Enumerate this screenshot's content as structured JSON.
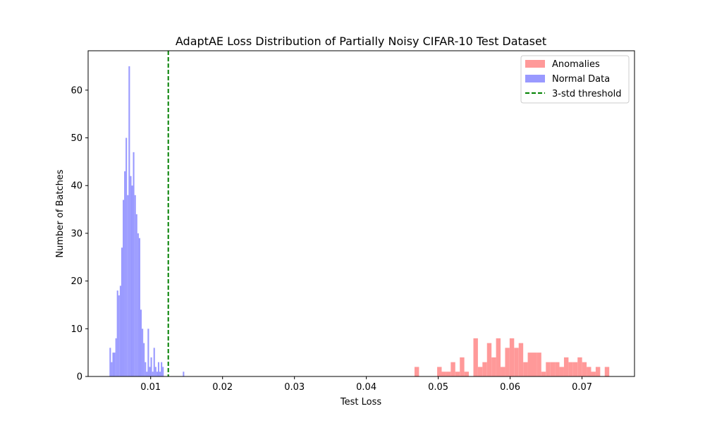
{
  "chart_data": {
    "type": "histogram",
    "title": "AdaptAE Loss Distribution of Partially Noisy CIFAR-10 Test Dataset",
    "xlabel": "Test Loss",
    "ylabel": "Number of Batches",
    "xlim": [
      0.0013,
      0.0773
    ],
    "ylim": [
      0,
      68.25
    ],
    "xticks": [
      {
        "value": 0.01,
        "label": "0.01"
      },
      {
        "value": 0.02,
        "label": "0.02"
      },
      {
        "value": 0.03,
        "label": "0.03"
      },
      {
        "value": 0.04,
        "label": "0.04"
      },
      {
        "value": 0.05,
        "label": "0.05"
      },
      {
        "value": 0.06,
        "label": "0.06"
      },
      {
        "value": 0.07,
        "label": "0.07"
      }
    ],
    "yticks": [
      {
        "value": 0,
        "label": "0"
      },
      {
        "value": 10,
        "label": "10"
      },
      {
        "value": 20,
        "label": "20"
      },
      {
        "value": 30,
        "label": "30"
      },
      {
        "value": 40,
        "label": "40"
      },
      {
        "value": 50,
        "label": "50"
      },
      {
        "value": 60,
        "label": "60"
      }
    ],
    "series": [
      {
        "name": "Normal Data",
        "color": "#9999ff",
        "bin_width": 0.000204,
        "bin_starts": [
          0.00427,
          0.00447,
          0.00468,
          0.00488,
          0.00509,
          0.00529,
          0.00549,
          0.0057,
          0.0059,
          0.00611,
          0.00631,
          0.00651,
          0.00672,
          0.00692,
          0.00713,
          0.00733,
          0.00753,
          0.00774,
          0.00794,
          0.00815,
          0.00835,
          0.00855,
          0.00876,
          0.00896,
          0.00917,
          0.00937,
          0.00957,
          0.00978,
          0.00998,
          0.01019,
          0.01039,
          0.01059,
          0.0108,
          0.011,
          0.01121,
          0.01141,
          0.01161,
          0.01182,
          0.01202,
          0.01223,
          0.01243,
          0.01263,
          0.01284,
          0.01304,
          0.01325,
          0.01345,
          0.01365,
          0.01386,
          0.01406,
          0.01427,
          0.01447
        ],
        "values": [
          6,
          3,
          5,
          5,
          8,
          18,
          17,
          19,
          27,
          37,
          43,
          50,
          38,
          65,
          42,
          40,
          47,
          38,
          34,
          30,
          29,
          14,
          10,
          7,
          3,
          1,
          10,
          2,
          4,
          1,
          6,
          2,
          1,
          3,
          1,
          3,
          2,
          0,
          0,
          0,
          0,
          0,
          0,
          0,
          0,
          0,
          0,
          0,
          0,
          0,
          1
        ]
      },
      {
        "name": "Anomalies",
        "color": "#ff9999",
        "bin_width": 0.00063,
        "bin_starts": [
          0.0467,
          0.04733,
          0.04796,
          0.04859,
          0.04922,
          0.04985,
          0.05048,
          0.05111,
          0.05174,
          0.05237,
          0.053,
          0.05363,
          0.05426,
          0.05489,
          0.05552,
          0.05615,
          0.05678,
          0.05741,
          0.05804,
          0.05867,
          0.0593,
          0.05993,
          0.06056,
          0.06119,
          0.06182,
          0.06245,
          0.06308,
          0.06371,
          0.06434,
          0.06497,
          0.0656,
          0.06623,
          0.06686,
          0.06749,
          0.06812,
          0.06875,
          0.06938,
          0.07001,
          0.07064,
          0.07127,
          0.0719,
          0.07253,
          0.07316,
          0.07379
        ],
        "values": [
          2,
          0,
          0,
          0,
          0,
          2,
          1,
          1,
          3,
          1,
          4,
          1,
          0,
          8,
          2,
          3,
          7,
          4,
          8,
          2,
          6,
          8,
          6,
          7,
          3,
          5,
          5,
          5,
          1,
          3,
          3,
          3,
          2,
          4,
          3,
          3,
          4,
          3,
          2,
          1,
          2,
          0,
          2,
          0
        ]
      }
    ],
    "threshold": {
      "name": "3-std threshold",
      "x": 0.01245,
      "color": "#008000",
      "style": "dashed"
    },
    "legend": {
      "position": "top-right",
      "entries": [
        "Anomalies",
        "Normal Data",
        "3-std threshold"
      ]
    },
    "grid": false
  }
}
